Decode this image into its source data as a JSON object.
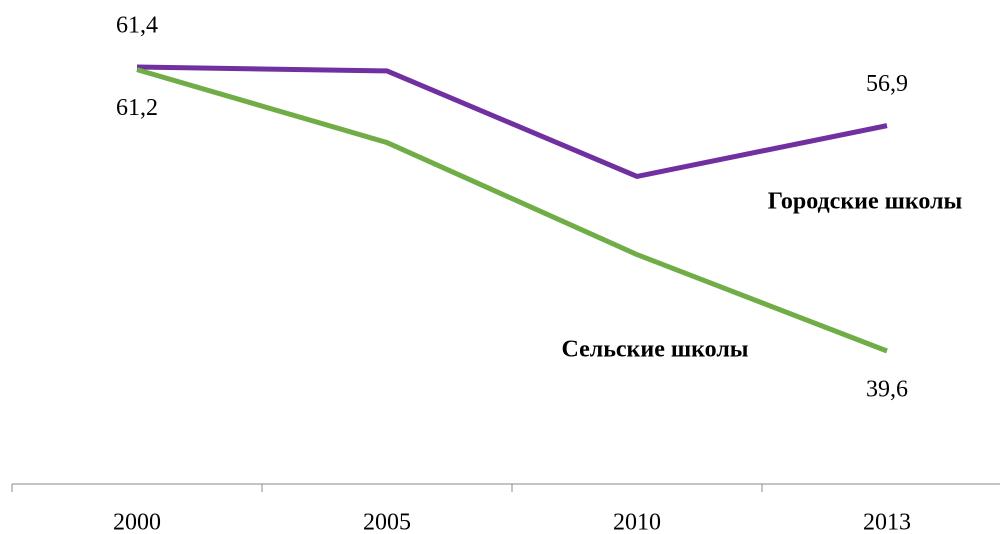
{
  "chart_data": {
    "type": "line",
    "categories": [
      "2000",
      "2005",
      "2010",
      "2013"
    ],
    "series": [
      {
        "name": "Городские школы",
        "color": "#7030a0",
        "values": [
          61.4,
          61.1,
          53.0,
          56.9
        ],
        "value_labels": [
          "61,4",
          null,
          null,
          "56,9"
        ]
      },
      {
        "name": "Сельские школы",
        "color": "#70ad47",
        "values": [
          61.2,
          55.6,
          47.0,
          39.6
        ],
        "value_labels": [
          "61,2",
          null,
          null,
          "39,6"
        ]
      }
    ]
  }
}
